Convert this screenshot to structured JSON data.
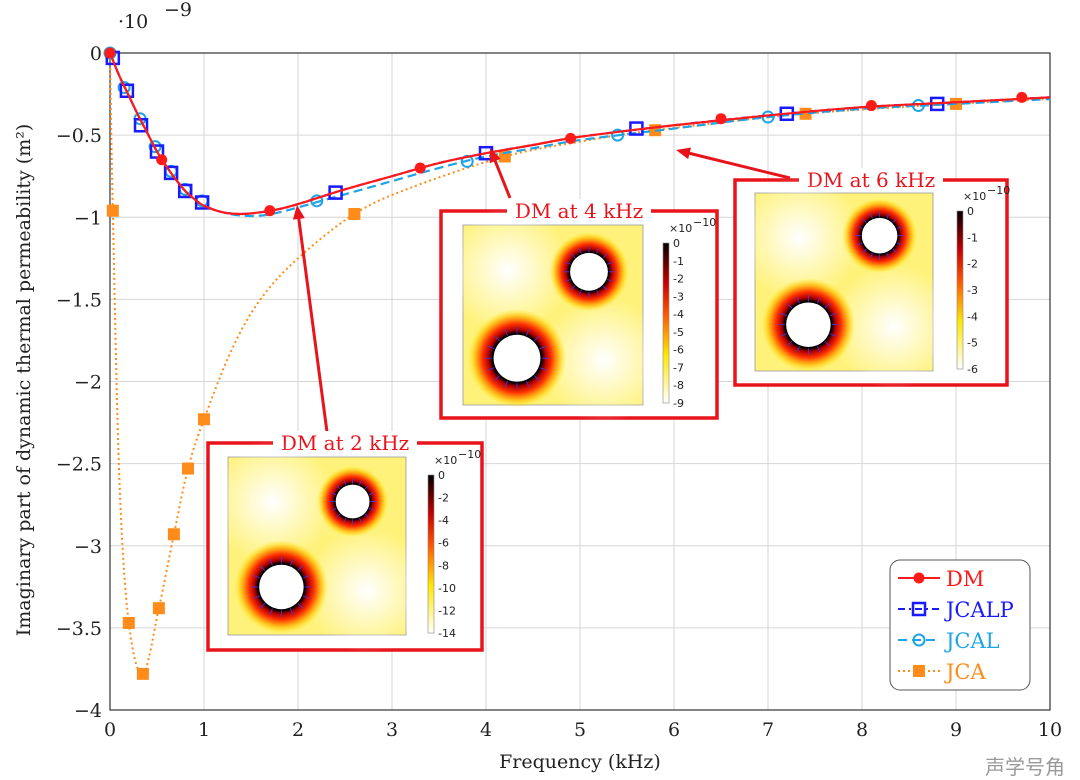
{
  "chart_data": {
    "type": "line",
    "xlabel": "Frequency (kHz)",
    "ylabel": "Imaginary part of dynamic thermal permeability (m²)",
    "y_scale_label": "·10",
    "y_scale_exp": "−9",
    "xlim": [
      0,
      10
    ],
    "ylim": [
      -4,
      0
    ],
    "grid": true,
    "legend_position": "bottom-right",
    "x_ticks": [
      "0",
      "1",
      "2",
      "3",
      "4",
      "5",
      "6",
      "7",
      "8",
      "9",
      "10"
    ],
    "y_ticks": [
      {
        "v": 0,
        "label": "0"
      },
      {
        "v": -0.5,
        "label": "−0.5"
      },
      {
        "v": -1,
        "label": "−1"
      },
      {
        "v": -1.5,
        "label": "−1.5"
      },
      {
        "v": -2,
        "label": "−2"
      },
      {
        "v": -2.5,
        "label": "−2.5"
      },
      {
        "v": -3,
        "label": "−3"
      },
      {
        "v": -3.5,
        "label": "−3.5"
      },
      {
        "v": -4,
        "label": "−4"
      }
    ],
    "series": [
      {
        "name": "DM",
        "color": "#ff1a1a",
        "marker": "circle-filled",
        "dash": "",
        "markers": {
          "x": [
            0,
            0.55,
            1.7,
            3.3,
            4.9,
            6.5,
            8.1,
            9.7
          ],
          "y": [
            0,
            -0.65,
            -0.96,
            -0.7,
            -0.52,
            -0.4,
            -0.32,
            -0.27
          ]
        },
        "curve": {
          "x": [
            0,
            0.1,
            0.2,
            0.3,
            0.4,
            0.5,
            0.6,
            0.7,
            0.8,
            0.9,
            1.0,
            1.2,
            1.4,
            1.6,
            1.8,
            2,
            2.5,
            3,
            3.5,
            4,
            4.5,
            5,
            6,
            7,
            8,
            9,
            10
          ],
          "y": [
            0,
            -0.14,
            -0.26,
            -0.38,
            -0.49,
            -0.6,
            -0.69,
            -0.77,
            -0.84,
            -0.89,
            -0.93,
            -0.97,
            -0.98,
            -0.97,
            -0.95,
            -0.92,
            -0.83,
            -0.75,
            -0.67,
            -0.61,
            -0.56,
            -0.51,
            -0.44,
            -0.38,
            -0.33,
            -0.3,
            -0.27
          ]
        }
      },
      {
        "name": "JCALP",
        "color": "#1a1aff",
        "marker": "square-open",
        "dash": "7 4 2 4",
        "markers": {
          "x": [
            0.03,
            0.18,
            0.33,
            0.5,
            0.65,
            0.8,
            0.98,
            2.4,
            4.0,
            5.6,
            7.2,
            8.8
          ],
          "y": [
            -0.03,
            -0.23,
            -0.44,
            -0.6,
            -0.73,
            -0.84,
            -0.91,
            -0.85,
            -0.61,
            -0.46,
            -0.37,
            -0.31
          ]
        },
        "curve": {
          "x": [
            0,
            0.1,
            0.2,
            0.3,
            0.4,
            0.5,
            0.6,
            0.7,
            0.8,
            0.9,
            1.0,
            1.2,
            1.4,
            1.6,
            1.8,
            2,
            2.5,
            3,
            3.5,
            4,
            4.5,
            5,
            6,
            7,
            8,
            9,
            10
          ],
          "y": [
            0,
            -0.14,
            -0.26,
            -0.38,
            -0.49,
            -0.6,
            -0.69,
            -0.77,
            -0.84,
            -0.89,
            -0.93,
            -0.97,
            -0.98,
            -0.97,
            -0.95,
            -0.92,
            -0.83,
            -0.75,
            -0.67,
            -0.61,
            -0.56,
            -0.51,
            -0.44,
            -0.38,
            -0.33,
            -0.3,
            -0.27
          ]
        }
      },
      {
        "name": "JCAL",
        "color": "#1fa4e6",
        "marker": "circle-open",
        "dash": "9 5",
        "markers": {
          "x": [
            0,
            0.15,
            0.32,
            0.48,
            0.65,
            0.8,
            0.98,
            2.2,
            3.8,
            5.4,
            7.0,
            8.6
          ],
          "y": [
            0,
            -0.21,
            -0.4,
            -0.57,
            -0.72,
            -0.83,
            -0.9,
            -0.9,
            -0.66,
            -0.5,
            -0.39,
            -0.32
          ]
        },
        "curve": {
          "x": [
            0,
            0.1,
            0.2,
            0.3,
            0.4,
            0.5,
            0.6,
            0.7,
            0.8,
            0.9,
            1.0,
            1.2,
            1.4,
            1.6,
            1.8,
            2,
            2.5,
            3,
            3.5,
            4,
            4.5,
            5,
            6,
            7,
            8,
            9,
            10
          ],
          "y": [
            0,
            -0.14,
            -0.26,
            -0.38,
            -0.49,
            -0.6,
            -0.69,
            -0.77,
            -0.84,
            -0.89,
            -0.93,
            -0.97,
            -0.99,
            -0.99,
            -0.97,
            -0.94,
            -0.86,
            -0.78,
            -0.7,
            -0.63,
            -0.58,
            -0.53,
            -0.46,
            -0.39,
            -0.34,
            -0.31,
            -0.28
          ]
        }
      },
      {
        "name": "JCA",
        "color": "#ff8c1a",
        "marker": "square-filled",
        "dash": "2 3",
        "markers": {
          "x": [
            0.03,
            0.2,
            0.35,
            0.52,
            0.68,
            0.83,
            1.0,
            2.6,
            4.2,
            5.8,
            7.4,
            9.0
          ],
          "y": [
            -0.96,
            -3.47,
            -3.78,
            -3.38,
            -2.93,
            -2.53,
            -2.23,
            -0.98,
            -0.63,
            -0.47,
            -0.37,
            -0.31
          ]
        },
        "curve": {
          "x": [
            0,
            0.03,
            0.1,
            0.2,
            0.35,
            0.52,
            0.68,
            0.83,
            1.0,
            1.3,
            1.6,
            2,
            2.6,
            3.2,
            4.2,
            5,
            5.8,
            7.4,
            9,
            10
          ],
          "y": [
            0,
            -0.96,
            -2.6,
            -3.47,
            -3.78,
            -3.38,
            -2.93,
            -2.53,
            -2.23,
            -1.8,
            -1.5,
            -1.25,
            -0.98,
            -0.82,
            -0.63,
            -0.54,
            -0.47,
            -0.37,
            -0.31,
            -0.28
          ]
        }
      }
    ],
    "annotations": [
      {
        "title": "DM at 2 kHz",
        "target_x": 2.0,
        "colorbar_exp": "×10",
        "colorbar_pow": "−10",
        "colorbar_ticks": [
          "0",
          "-2",
          "-4",
          "-6",
          "-8",
          "-10",
          "-12",
          "-14"
        ]
      },
      {
        "title": "DM at 4 kHz",
        "target_x": 4.0,
        "colorbar_exp": "×10",
        "colorbar_pow": "−10",
        "colorbar_ticks": [
          "0",
          "-1",
          "-2",
          "-3",
          "-4",
          "-5",
          "-6",
          "-7",
          "-8",
          "-9"
        ]
      },
      {
        "title": "DM at 6 kHz",
        "target_x": 6.0,
        "colorbar_exp": "×10",
        "colorbar_pow": "−10",
        "colorbar_ticks": [
          "0",
          "-1",
          "-2",
          "-3",
          "-4",
          "-5",
          "-6"
        ]
      }
    ]
  },
  "watermark": "声学号角"
}
